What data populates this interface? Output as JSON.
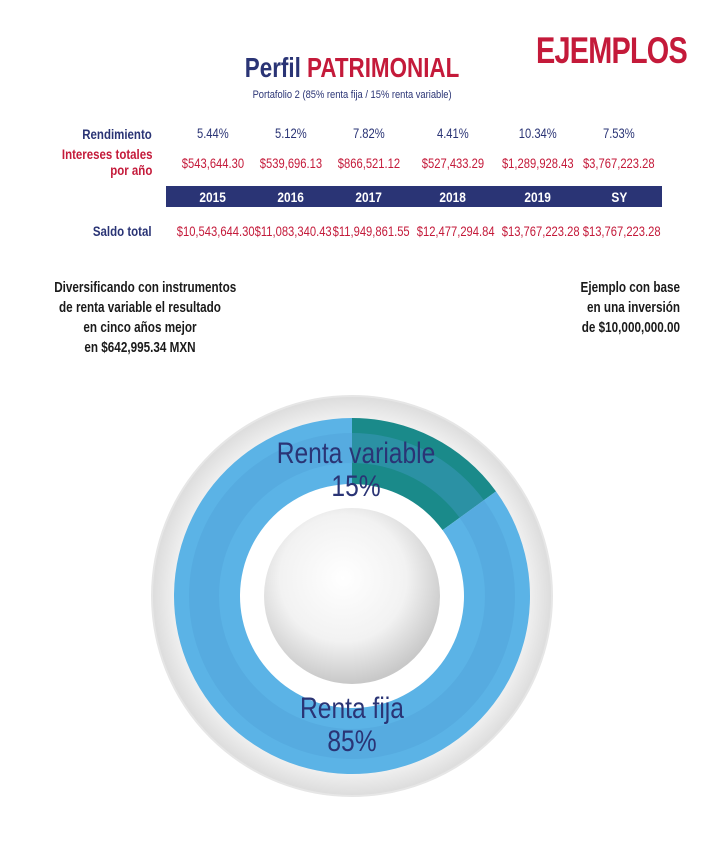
{
  "header": {
    "badge": "EJEMPLOS",
    "title_prefix": "Perfil",
    "title_accent": "PATRIMONIAL",
    "subtitle": "Portafolio 2 (85% renta fija / 15% renta variable)"
  },
  "table": {
    "labels": {
      "rendimiento": "Rendimiento",
      "intereses_line1": "Intereses totales",
      "intereses_line2": "por año",
      "saldo": "Saldo total"
    },
    "years": [
      "2015",
      "2016",
      "2017",
      "2018",
      "2019",
      "SY"
    ],
    "rendimiento": [
      "5.44%",
      "5.12%",
      "7.82%",
      "4.41%",
      "10.34%",
      "7.53%"
    ],
    "intereses": [
      "$543,644.30",
      "$539,696.13",
      "$866,521.12",
      "$527,433.29",
      "$1,289,928.43",
      "$3,767,223.28"
    ],
    "saldo": [
      "$10,543,644.30",
      "$11,083,340.43",
      "$11,949,861.55",
      "$12,477,294.84",
      "$13,767,223.28",
      "$13,767,223.28"
    ]
  },
  "notes": {
    "left_lines": [
      "Diversificando con instrumentos",
      "de renta variable el resultado",
      "en cinco años mejor"
    ],
    "left_last_prefix": "en ",
    "left_last_amount": "$642,995.34 MXN",
    "right_lines": [
      "Ejemplo con base",
      "en una inversión",
      "de $10,000,000.00"
    ]
  },
  "colors": {
    "navy": "#2a3475",
    "red": "#c41a3a",
    "teal": "#1a8a8a",
    "light_blue": "#5bb3e6"
  },
  "chart_data": {
    "type": "pie",
    "style": "donut",
    "slices": [
      {
        "label": "Renta variable",
        "value": 15,
        "value_label": "15%"
      },
      {
        "label": "Renta fija",
        "value": 85,
        "value_label": "85%"
      }
    ]
  }
}
